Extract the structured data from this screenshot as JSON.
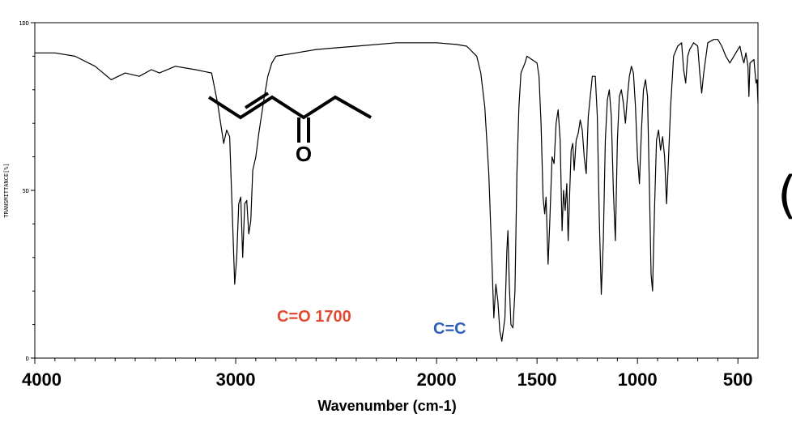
{
  "chart_data": {
    "type": "line",
    "title": "",
    "xlabel": "Wavenumber (cm-1)",
    "ylabel": "TRANSMITTANCE[%]",
    "xlim": [
      4000,
      400
    ],
    "ylim": [
      0,
      100
    ],
    "x_reversed": true,
    "xticks": [
      {
        "value": 4000,
        "label": "4000"
      },
      {
        "value": 3000,
        "label": "3000"
      },
      {
        "value": 2000,
        "label": "2000"
      },
      {
        "value": 1500,
        "label": "1500"
      },
      {
        "value": 1000,
        "label": "1000"
      },
      {
        "value": 500,
        "label": "500"
      }
    ],
    "yticks": [
      {
        "value": 0,
        "label": "D"
      },
      {
        "value": 50,
        "label": "5D"
      },
      {
        "value": 100,
        "label": "1DD"
      }
    ],
    "grid": false,
    "series": [
      {
        "color": "#000000",
        "points": [
          [
            4000,
            91
          ],
          [
            3900,
            91
          ],
          [
            3800,
            90
          ],
          [
            3700,
            87
          ],
          [
            3620,
            83
          ],
          [
            3550,
            85
          ],
          [
            3480,
            84
          ],
          [
            3420,
            86
          ],
          [
            3380,
            85
          ],
          [
            3300,
            87
          ],
          [
            3200,
            86
          ],
          [
            3120,
            85
          ],
          [
            3090,
            76
          ],
          [
            3060,
            64
          ],
          [
            3045,
            68
          ],
          [
            3030,
            66
          ],
          [
            3015,
            40
          ],
          [
            3005,
            22
          ],
          [
            2995,
            30
          ],
          [
            2985,
            46
          ],
          [
            2975,
            48
          ],
          [
            2965,
            30
          ],
          [
            2955,
            46
          ],
          [
            2945,
            47
          ],
          [
            2935,
            37
          ],
          [
            2925,
            41
          ],
          [
            2915,
            56
          ],
          [
            2900,
            60
          ],
          [
            2885,
            67
          ],
          [
            2860,
            77
          ],
          [
            2840,
            84
          ],
          [
            2820,
            88
          ],
          [
            2800,
            90
          ],
          [
            2700,
            91
          ],
          [
            2600,
            92
          ],
          [
            2500,
            92.5
          ],
          [
            2400,
            93
          ],
          [
            2200,
            94
          ],
          [
            2000,
            94
          ],
          [
            1900,
            93.5
          ],
          [
            1850,
            93
          ],
          [
            1800,
            90
          ],
          [
            1780,
            85
          ],
          [
            1760,
            75
          ],
          [
            1740,
            55
          ],
          [
            1725,
            30
          ],
          [
            1715,
            12
          ],
          [
            1705,
            22
          ],
          [
            1695,
            17
          ],
          [
            1685,
            8
          ],
          [
            1675,
            5
          ],
          [
            1660,
            12
          ],
          [
            1650,
            32
          ],
          [
            1645,
            38
          ],
          [
            1638,
            22
          ],
          [
            1630,
            10
          ],
          [
            1620,
            9
          ],
          [
            1610,
            20
          ],
          [
            1600,
            55
          ],
          [
            1590,
            75
          ],
          [
            1580,
            85
          ],
          [
            1560,
            88
          ],
          [
            1550,
            90
          ],
          [
            1500,
            88
          ],
          [
            1490,
            84
          ],
          [
            1480,
            70
          ],
          [
            1470,
            48
          ],
          [
            1462,
            43
          ],
          [
            1455,
            48
          ],
          [
            1445,
            28
          ],
          [
            1437,
            40
          ],
          [
            1425,
            60
          ],
          [
            1415,
            58
          ],
          [
            1405,
            70
          ],
          [
            1395,
            74
          ],
          [
            1385,
            65
          ],
          [
            1375,
            38
          ],
          [
            1368,
            50
          ],
          [
            1360,
            44
          ],
          [
            1352,
            52
          ],
          [
            1345,
            35
          ],
          [
            1338,
            48
          ],
          [
            1330,
            62
          ],
          [
            1322,
            64
          ],
          [
            1315,
            56
          ],
          [
            1305,
            65
          ],
          [
            1295,
            67
          ],
          [
            1285,
            71
          ],
          [
            1275,
            68
          ],
          [
            1265,
            60
          ],
          [
            1255,
            55
          ],
          [
            1245,
            72
          ],
          [
            1235,
            78
          ],
          [
            1225,
            84
          ],
          [
            1210,
            84
          ],
          [
            1200,
            72
          ],
          [
            1190,
            42
          ],
          [
            1180,
            19
          ],
          [
            1170,
            35
          ],
          [
            1160,
            65
          ],
          [
            1150,
            77
          ],
          [
            1140,
            80
          ],
          [
            1130,
            72
          ],
          [
            1120,
            50
          ],
          [
            1110,
            35
          ],
          [
            1100,
            65
          ],
          [
            1090,
            78
          ],
          [
            1080,
            80
          ],
          [
            1070,
            76
          ],
          [
            1060,
            70
          ],
          [
            1050,
            78
          ],
          [
            1040,
            84
          ],
          [
            1030,
            87
          ],
          [
            1020,
            85
          ],
          [
            1010,
            75
          ],
          [
            1000,
            60
          ],
          [
            990,
            52
          ],
          [
            980,
            68
          ],
          [
            970,
            80
          ],
          [
            960,
            83
          ],
          [
            950,
            78
          ],
          [
            940,
            50
          ],
          [
            932,
            25
          ],
          [
            925,
            20
          ],
          [
            915,
            45
          ],
          [
            905,
            65
          ],
          [
            895,
            68
          ],
          [
            885,
            62
          ],
          [
            875,
            66
          ],
          [
            865,
            60
          ],
          [
            855,
            46
          ],
          [
            845,
            60
          ],
          [
            835,
            75
          ],
          [
            820,
            90
          ],
          [
            800,
            93
          ],
          [
            780,
            94
          ],
          [
            770,
            86
          ],
          [
            760,
            82
          ],
          [
            750,
            90
          ],
          [
            740,
            92
          ],
          [
            720,
            94
          ],
          [
            700,
            93
          ],
          [
            690,
            85
          ],
          [
            680,
            79
          ],
          [
            670,
            85
          ],
          [
            650,
            94
          ],
          [
            620,
            95
          ],
          [
            600,
            95
          ],
          [
            580,
            93
          ],
          [
            560,
            90
          ],
          [
            540,
            88
          ],
          [
            520,
            90
          ],
          [
            500,
            92
          ],
          [
            490,
            93
          ],
          [
            480,
            90
          ],
          [
            470,
            88
          ],
          [
            460,
            91
          ],
          [
            450,
            87
          ],
          [
            445,
            78
          ],
          [
            440,
            88
          ],
          [
            420,
            89
          ],
          [
            410,
            82
          ],
          [
            405,
            83
          ],
          [
            400,
            76
          ]
        ]
      }
    ],
    "annotations": [
      {
        "text": "C=O 1700",
        "color": "#e24a33"
      },
      {
        "text": "C=C",
        "color": "#2e5fb8"
      }
    ],
    "molecule_atom_label": "O",
    "cropped_glyph": "("
  }
}
